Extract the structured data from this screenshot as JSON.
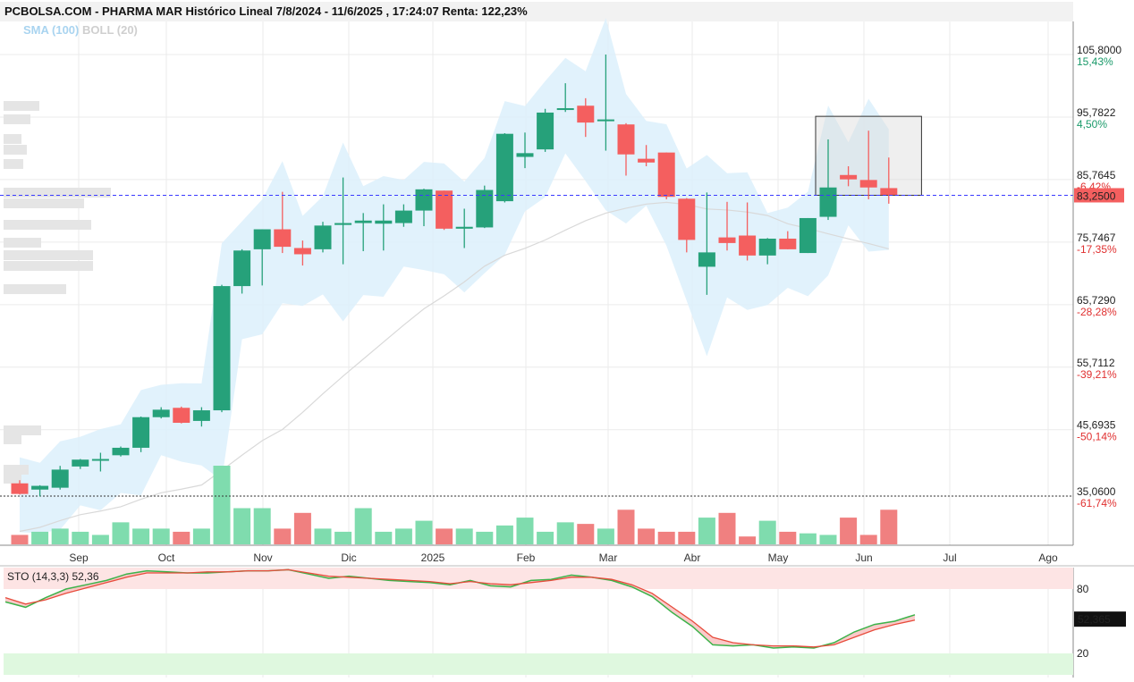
{
  "header": {
    "title": "PCBOLSA.COM - PHARMA MAR Histórico Lineal 7/8/2024 - 11/6/2025 , 17:24:07 Renta: 122,23%"
  },
  "legend": {
    "sma": "SMA (100)",
    "boll": "BOLL (20)"
  },
  "colors": {
    "up": "#26a17a",
    "down": "#f45f5f",
    "band": "#dcf0fb",
    "current": "#3a3aff",
    "sto_k": "#3cb34a",
    "sto_d": "#e74c3c"
  },
  "chart_data": [
    {
      "type": "candlestick",
      "title": "PCBOLSA.COM - PHARMA MAR Histórico Lineal 7/8/2024 - 11/6/2025 , 17:24:07 Renta: 122,23%",
      "x_tick_labels": [
        "Sep",
        "Oct",
        "Nov",
        "Dic",
        "2025",
        "Feb",
        "Mar",
        "Abr",
        "May",
        "Jun",
        "Jul",
        "Ago"
      ],
      "y_ticks": [
        {
          "value": 105.8,
          "label": "105,8000",
          "pct": "15,43%"
        },
        {
          "value": 95.7822,
          "label": "95,7822",
          "pct": "4,50%"
        },
        {
          "value": 85.7645,
          "label": "85,7645",
          "pct": "-6,42%"
        },
        {
          "value": 75.7467,
          "label": "75,7467",
          "pct": "-17,35%"
        },
        {
          "value": 65.729,
          "label": "65,7290",
          "pct": "-28,28%"
        },
        {
          "value": 55.7112,
          "label": "55,7112",
          "pct": "-39,21%"
        },
        {
          "value": 45.6935,
          "label": "45,6935",
          "pct": "-50,14%"
        },
        {
          "value": 35.06,
          "label": "35,0600",
          "pct": "-61,74%"
        }
      ],
      "ylim": [
        30.0,
        112.0
      ],
      "current_price": {
        "value": 83.25,
        "label": "83,2500"
      },
      "reference_level": 35.06,
      "candles": [
        {
          "date": "2024-08-09",
          "o": 37.1,
          "h": 37.6,
          "l": 35.3,
          "c": 35.4
        },
        {
          "date": "2024-08-16",
          "o": 36.1,
          "h": 36.8,
          "l": 35.0,
          "c": 36.7
        },
        {
          "date": "2024-08-23",
          "o": 36.4,
          "h": 39.9,
          "l": 36.1,
          "c": 39.3
        },
        {
          "date": "2024-08-30",
          "o": 39.8,
          "h": 41.0,
          "l": 39.4,
          "c": 40.9
        },
        {
          "date": "2024-09-06",
          "o": 40.9,
          "h": 42.0,
          "l": 39.0,
          "c": 41.0
        },
        {
          "date": "2024-09-13",
          "o": 41.6,
          "h": 43.0,
          "l": 41.4,
          "c": 42.8
        },
        {
          "date": "2024-09-20",
          "o": 42.8,
          "h": 47.8,
          "l": 42.1,
          "c": 47.7
        },
        {
          "date": "2024-09-27",
          "o": 47.7,
          "h": 49.3,
          "l": 47.5,
          "c": 48.9
        },
        {
          "date": "2024-10-04",
          "o": 49.2,
          "h": 49.4,
          "l": 46.7,
          "c": 46.8
        },
        {
          "date": "2024-10-11",
          "o": 47.1,
          "h": 49.3,
          "l": 46.2,
          "c": 48.8
        },
        {
          "date": "2024-10-18",
          "o": 48.8,
          "h": 68.9,
          "l": 48.5,
          "c": 68.7
        },
        {
          "date": "2024-10-25",
          "o": 68.7,
          "h": 74.6,
          "l": 67.5,
          "c": 74.4
        },
        {
          "date": "2024-11-01",
          "o": 74.6,
          "h": 77.8,
          "l": 68.8,
          "c": 77.8
        },
        {
          "date": "2024-11-08",
          "o": 77.8,
          "h": 83.8,
          "l": 74.0,
          "c": 75.0
        },
        {
          "date": "2024-11-15",
          "o": 74.8,
          "h": 76.0,
          "l": 72.0,
          "c": 73.8
        },
        {
          "date": "2024-11-22",
          "o": 74.6,
          "h": 79.0,
          "l": 74.1,
          "c": 78.4
        },
        {
          "date": "2024-11-29",
          "o": 78.5,
          "h": 86.1,
          "l": 72.2,
          "c": 78.8
        },
        {
          "date": "2024-12-06",
          "o": 78.8,
          "h": 80.4,
          "l": 74.3,
          "c": 79.2
        },
        {
          "date": "2024-12-13",
          "o": 78.7,
          "h": 81.8,
          "l": 74.4,
          "c": 79.2
        },
        {
          "date": "2024-12-20",
          "o": 78.8,
          "h": 81.8,
          "l": 78.2,
          "c": 80.8
        },
        {
          "date": "2024-12-27",
          "o": 80.8,
          "h": 84.3,
          "l": 78.3,
          "c": 84.2
        },
        {
          "date": "2025-01-03",
          "o": 84.0,
          "h": 84.0,
          "l": 77.7,
          "c": 77.9
        },
        {
          "date": "2025-01-10",
          "o": 77.9,
          "h": 81.1,
          "l": 74.8,
          "c": 78.2
        },
        {
          "date": "2025-01-17",
          "o": 78.1,
          "h": 84.8,
          "l": 78.0,
          "c": 84.1
        },
        {
          "date": "2025-01-24",
          "o": 82.3,
          "h": 93.2,
          "l": 82.1,
          "c": 93.1
        },
        {
          "date": "2025-01-31",
          "o": 89.4,
          "h": 93.3,
          "l": 87.6,
          "c": 90.0
        },
        {
          "date": "2025-02-07",
          "o": 90.6,
          "h": 97.1,
          "l": 90.2,
          "c": 96.5
        },
        {
          "date": "2025-02-14",
          "o": 97.1,
          "h": 101.2,
          "l": 96.6,
          "c": 97.2
        },
        {
          "date": "2025-02-21",
          "o": 97.6,
          "h": 98.8,
          "l": 92.6,
          "c": 94.9
        },
        {
          "date": "2025-02-28",
          "o": 95.4,
          "h": 105.8,
          "l": 90.4,
          "c": 95.4
        },
        {
          "date": "2025-03-07",
          "o": 94.6,
          "h": 94.8,
          "l": 86.4,
          "c": 89.8
        },
        {
          "date": "2025-03-14",
          "o": 89.1,
          "h": 91.3,
          "l": 87.9,
          "c": 88.5
        },
        {
          "date": "2025-03-21",
          "o": 90.1,
          "h": 90.1,
          "l": 82.6,
          "c": 83.0
        },
        {
          "date": "2025-03-28",
          "o": 82.7,
          "h": 82.8,
          "l": 74.1,
          "c": 76.1
        },
        {
          "date": "2025-04-04",
          "o": 71.8,
          "h": 83.7,
          "l": 67.3,
          "c": 74.1
        },
        {
          "date": "2025-04-11",
          "o": 76.5,
          "h": 82.2,
          "l": 74.4,
          "c": 75.6
        },
        {
          "date": "2025-04-18",
          "o": 76.8,
          "h": 82.1,
          "l": 72.8,
          "c": 73.6
        },
        {
          "date": "2025-04-25",
          "o": 73.6,
          "h": 76.4,
          "l": 72.2,
          "c": 76.3
        },
        {
          "date": "2025-05-02",
          "o": 76.3,
          "h": 77.5,
          "l": 74.6,
          "c": 74.6
        },
        {
          "date": "2025-05-09",
          "o": 74.0,
          "h": 79.6,
          "l": 74.0,
          "c": 79.6
        },
        {
          "date": "2025-05-16",
          "o": 79.8,
          "h": 92.2,
          "l": 79.3,
          "c": 84.5
        },
        {
          "date": "2025-05-23",
          "o": 86.5,
          "h": 87.9,
          "l": 84.7,
          "c": 85.8
        },
        {
          "date": "2025-05-30",
          "o": 85.7,
          "h": 93.6,
          "l": 82.6,
          "c": 84.5
        },
        {
          "date": "2025-06-06",
          "o": 84.4,
          "h": 89.3,
          "l": 81.9,
          "c": 83.3
        }
      ],
      "volume": [
        0.12,
        0.16,
        0.2,
        0.16,
        0.12,
        0.28,
        0.2,
        0.2,
        0.16,
        0.2,
        1.0,
        0.46,
        0.46,
        0.2,
        0.4,
        0.2,
        0.16,
        0.46,
        0.16,
        0.2,
        0.3,
        0.2,
        0.2,
        0.16,
        0.24,
        0.34,
        0.16,
        0.28,
        0.26,
        0.2,
        0.44,
        0.2,
        0.16,
        0.16,
        0.34,
        0.4,
        0.1,
        0.3,
        0.16,
        0.14,
        0.12,
        0.34,
        0.12,
        0.44
      ]
    },
    {
      "type": "line",
      "title": "STO (14,3,3)",
      "value_label": "52,36",
      "current": {
        "value": 52.365,
        "label": "52,365"
      },
      "levels": [
        {
          "value": 80,
          "label": "80"
        },
        {
          "value": 20,
          "label": "20"
        }
      ],
      "ylim": [
        0,
        100
      ],
      "series": [
        {
          "name": "k",
          "values": [
            68,
            63,
            72,
            80,
            84,
            88,
            94,
            97,
            96,
            95,
            95,
            96,
            97,
            97,
            98,
            94,
            90,
            92,
            90,
            88,
            87,
            86,
            84,
            88,
            83,
            82,
            88,
            89,
            93,
            91,
            88,
            82,
            73,
            58,
            45,
            28,
            27,
            28,
            25,
            26,
            25,
            30,
            40,
            47,
            50,
            56
          ]
        },
        {
          "name": "d",
          "values": [
            72,
            66,
            70,
            76,
            81,
            86,
            91,
            95,
            95,
            95,
            96,
            96,
            97,
            97,
            98,
            95,
            92,
            91,
            90,
            89,
            88,
            87,
            85,
            87,
            85,
            84,
            86,
            88,
            91,
            91,
            89,
            84,
            76,
            63,
            50,
            35,
            30,
            28,
            27,
            27,
            26,
            28,
            35,
            42,
            47,
            51
          ]
        }
      ]
    }
  ]
}
